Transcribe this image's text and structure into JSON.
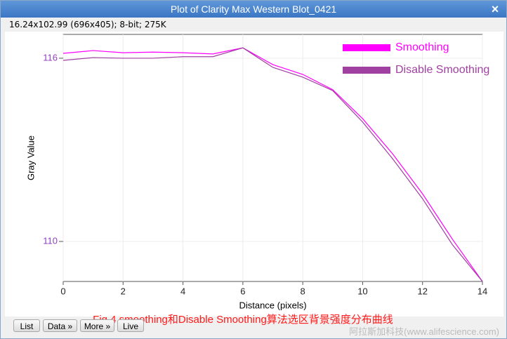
{
  "window": {
    "title": "Plot of Clarity Max Western Blot_0421",
    "close": "×",
    "info": "16.24x102.99   (696x405); 8-bit; 275K"
  },
  "chart_data": {
    "type": "line",
    "x_label": "Distance (pixels)",
    "y_label": "Gray Value",
    "x": [
      0,
      1,
      2,
      3,
      4,
      5,
      6,
      7,
      8,
      9,
      10,
      11,
      12,
      13,
      14
    ],
    "xlim": [
      0,
      14
    ],
    "xticks": [
      0,
      2,
      4,
      6,
      8,
      10,
      12,
      14
    ],
    "ylim": [
      108.69,
      116.78
    ],
    "yticks": [
      110,
      116
    ],
    "grid": true,
    "legend": "top-right",
    "series": [
      {
        "name": "Smoothing",
        "color": "#ff00ff",
        "values": [
          116.16,
          116.25,
          116.18,
          116.2,
          116.18,
          116.14,
          116.34,
          115.79,
          115.47,
          114.97,
          114.02,
          112.87,
          111.56,
          110.07,
          108.69
        ]
      },
      {
        "name": "Disable Smoothing",
        "color": "#a040a0",
        "values": [
          115.93,
          116.02,
          116.0,
          116.0,
          116.05,
          116.05,
          116.34,
          115.7,
          115.38,
          114.94,
          113.91,
          112.71,
          111.4,
          109.89,
          108.69
        ]
      }
    ]
  },
  "caption": "Fig.4 smoothing和Disable Smoothing算法选区背景强度分布曲线",
  "buttons": [
    "List",
    "Data »",
    "More »",
    "Live"
  ],
  "watermark": "阿拉斯加科技(www.alifescience.com)"
}
